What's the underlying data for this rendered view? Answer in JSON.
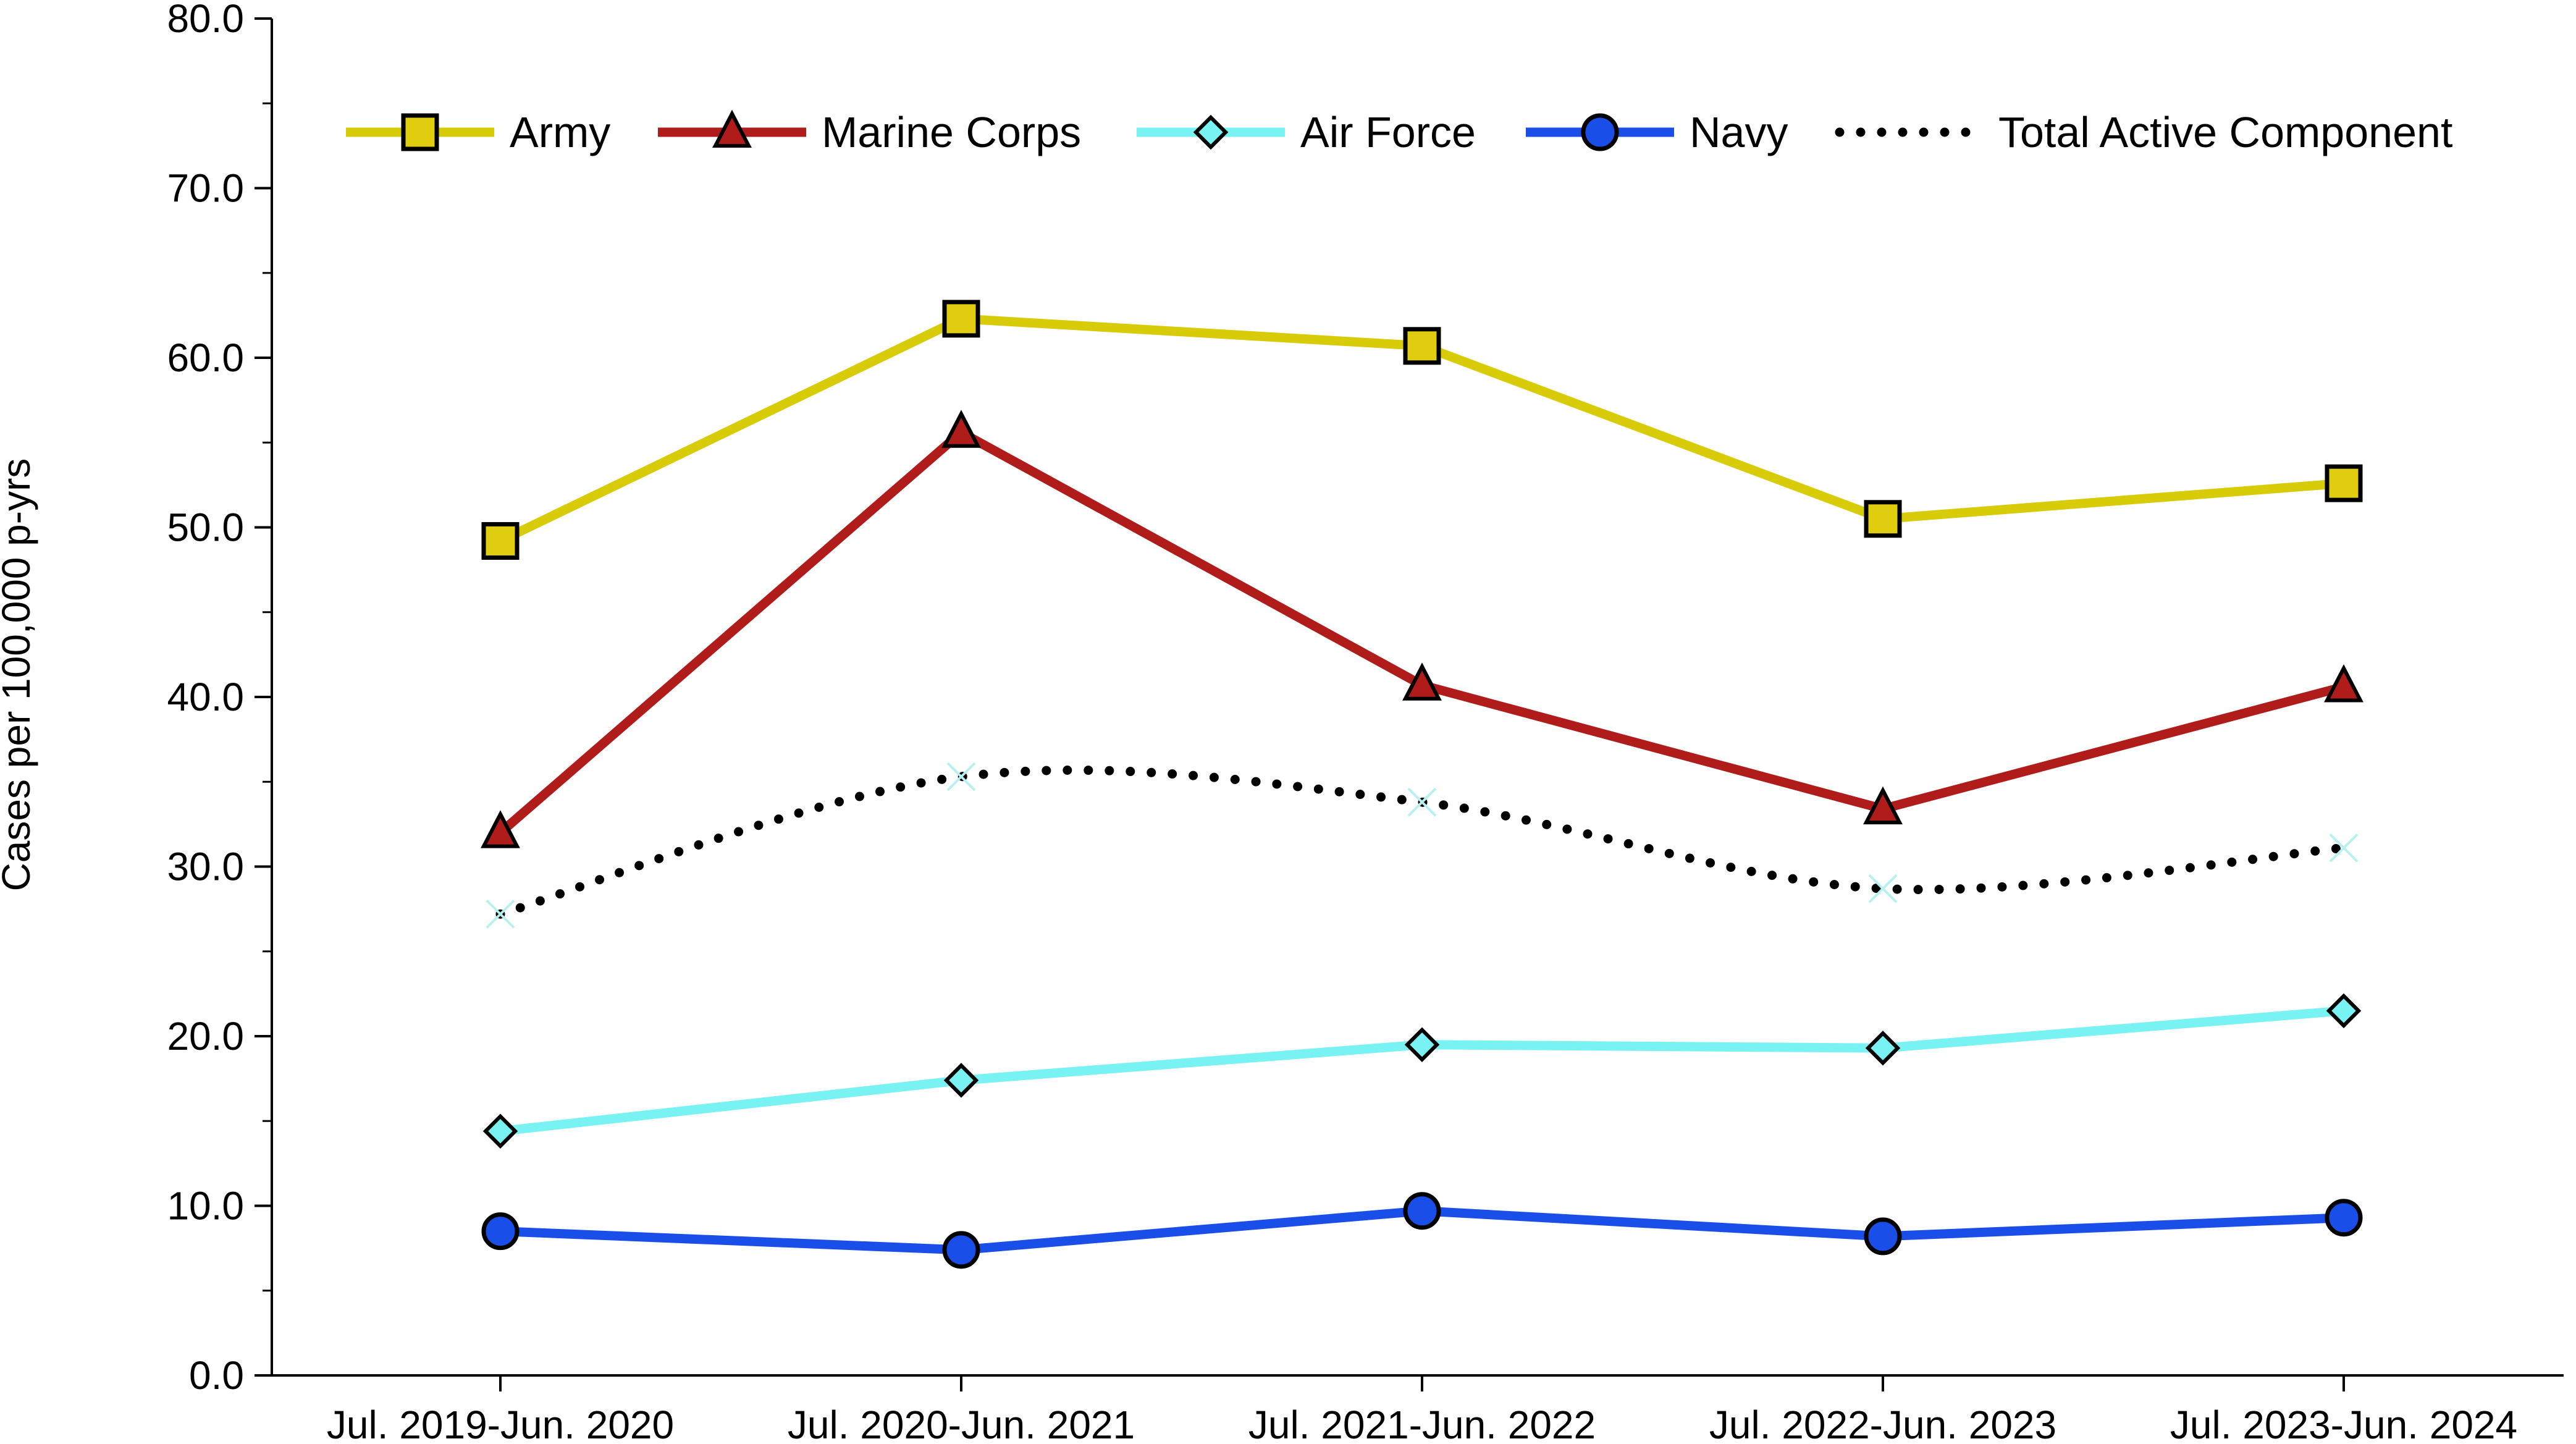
{
  "chart_data": {
    "type": "line",
    "title": "",
    "xlabel": "",
    "ylabel": "Cases per 100,000 p-yrs",
    "ylim": [
      0,
      80
    ],
    "yticks": [
      "0.0",
      "10.0",
      "20.0",
      "30.0",
      "40.0",
      "50.0",
      "60.0",
      "70.0",
      "80.0"
    ],
    "categories": [
      "Jul. 2019-Jun. 2020",
      "Jul. 2020-Jun. 2021",
      "Jul. 2021-Jun. 2022",
      "Jul. 2022-Jun. 2023",
      "Jul. 2023-Jun. 2024"
    ],
    "legend_position": "top",
    "series": [
      {
        "name": "Army",
        "marker": "square",
        "style": "solid",
        "color": "#d8cc08",
        "marker_fill": "#e0cd10",
        "values": [
          49.2,
          62.3,
          60.7,
          50.5,
          52.6
        ]
      },
      {
        "name": "Marine Corps",
        "marker": "triangle",
        "style": "solid",
        "color": "#b01c1a",
        "marker_fill": "#b01c1a",
        "values": [
          32.0,
          55.6,
          40.7,
          33.4,
          40.6
        ]
      },
      {
        "name": "Air Force",
        "marker": "diamond",
        "style": "solid",
        "color": "#78f2f2",
        "marker_fill": "#78f2f2",
        "values": [
          14.4,
          17.4,
          19.5,
          19.3,
          21.5
        ]
      },
      {
        "name": "Navy",
        "marker": "circle",
        "style": "solid",
        "color": "#1a4ee8",
        "marker_fill": "#1a4ee8",
        "values": [
          8.5,
          7.4,
          9.7,
          8.2,
          9.3
        ]
      },
      {
        "name": "Total Active Component",
        "marker": "none",
        "style": "dotted",
        "color": "#000000",
        "marker_fill": "#000000",
        "values": [
          27.2,
          35.3,
          33.8,
          28.7,
          31.1
        ]
      }
    ]
  }
}
